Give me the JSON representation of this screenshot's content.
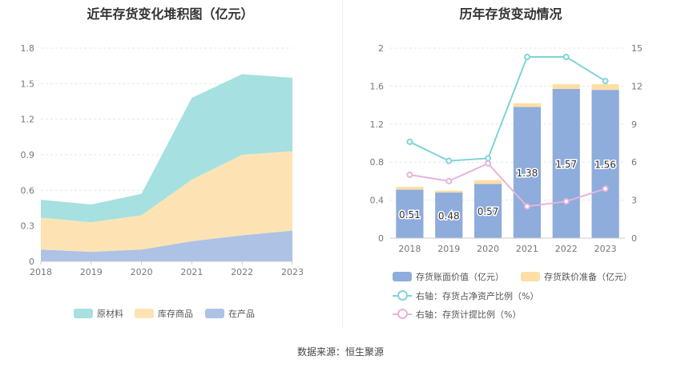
{
  "left_title": "近年存货变化堆积图（亿元）",
  "right_title": "历年存货变动情况",
  "source": "数据来源：恒生聚源",
  "colors": {
    "raw": "#a6e0e0",
    "goods": "#fde3b4",
    "wip": "#adc2e4",
    "bar": "#8eacdc",
    "impair": "#fddfa5",
    "line_ratio": "#7fd4d8",
    "line_provision": "#e6b4da",
    "grid": "#e6e6e6",
    "axis_text": "#777777"
  },
  "chart_data": [
    {
      "type": "area",
      "title": "近年存货变化堆积图（亿元）",
      "categories": [
        "2018",
        "2019",
        "2020",
        "2021",
        "2022",
        "2023"
      ],
      "ylim": [
        0,
        1.8
      ],
      "yticks": [
        "0",
        "0.3",
        "0.6",
        "0.9",
        "1.2",
        "1.5",
        "1.8"
      ],
      "series": [
        {
          "name": "在产品",
          "values": [
            0.1,
            0.08,
            0.1,
            0.17,
            0.22,
            0.26
          ]
        },
        {
          "name": "库存商品",
          "values": [
            0.27,
            0.25,
            0.29,
            0.52,
            0.68,
            0.67
          ]
        },
        {
          "name": "原材料",
          "values": [
            0.15,
            0.15,
            0.18,
            0.69,
            0.68,
            0.62
          ]
        }
      ],
      "legend": [
        "原材料",
        "库存商品",
        "在产品"
      ],
      "legend_position": "bottom"
    },
    {
      "type": "bar",
      "title": "历年存货变动情况",
      "categories": [
        "2018",
        "2019",
        "2020",
        "2021",
        "2022",
        "2023"
      ],
      "ylim": [
        0,
        2
      ],
      "yticks": [
        "0",
        "0.4",
        "0.8",
        "1.2",
        "1.6",
        "2"
      ],
      "y2lim": [
        0,
        15
      ],
      "y2ticks": [
        "0",
        "3",
        "6",
        "9",
        "12",
        "15"
      ],
      "series": [
        {
          "name": "存货账面价值（亿元）",
          "type": "bar",
          "values": [
            0.51,
            0.48,
            0.57,
            1.38,
            1.57,
            1.56
          ],
          "labels": [
            "0.51",
            "0.48",
            "0.57",
            "1.38",
            "1.57",
            "1.56"
          ]
        },
        {
          "name": "存货跌价准备（亿元）",
          "type": "bar",
          "stacked": true,
          "values": [
            0.03,
            0.02,
            0.04,
            0.04,
            0.05,
            0.06
          ]
        },
        {
          "name": "右轴：存货占净资产比例（%）",
          "type": "line",
          "axis": "right",
          "values": [
            7.6,
            6.1,
            6.3,
            14.3,
            14.3,
            12.4
          ]
        },
        {
          "name": "右轴：存货计提比例（%）",
          "type": "line",
          "axis": "right",
          "values": [
            5.0,
            4.5,
            5.9,
            2.5,
            2.9,
            3.9
          ]
        }
      ],
      "legend_position": "bottom"
    }
  ]
}
